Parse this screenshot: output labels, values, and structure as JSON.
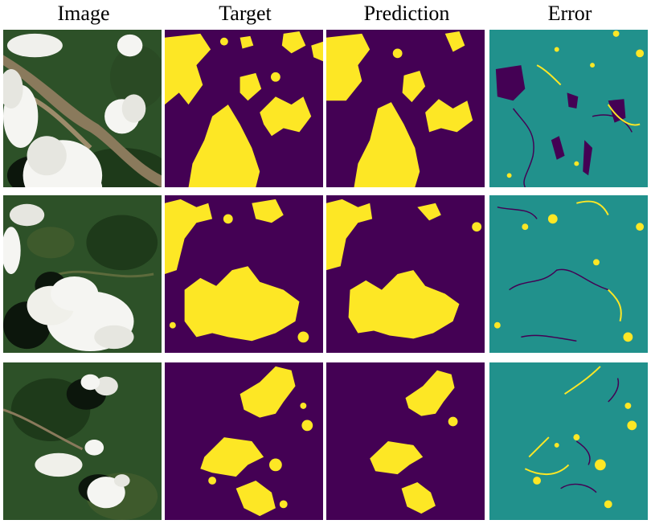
{
  "columns": [
    {
      "id": "image",
      "label": "Image"
    },
    {
      "id": "target",
      "label": "Target"
    },
    {
      "id": "prediction",
      "label": "Prediction"
    },
    {
      "id": "error",
      "label": "Error"
    }
  ],
  "rows": [
    {
      "id": "sample-1"
    },
    {
      "id": "sample-2"
    },
    {
      "id": "sample-3"
    }
  ],
  "colors": {
    "mask_background": "#440154",
    "mask_foreground": "#fde725",
    "error_background": "#21918c",
    "error_false_negative": "#440154",
    "error_false_positive": "#fde725",
    "forest_dark": "#1e3a1a",
    "forest": "#2d5128",
    "river": "#8a7a5c",
    "cloud": "#f5f5f2",
    "cloud_shadow": "#0c160c"
  }
}
